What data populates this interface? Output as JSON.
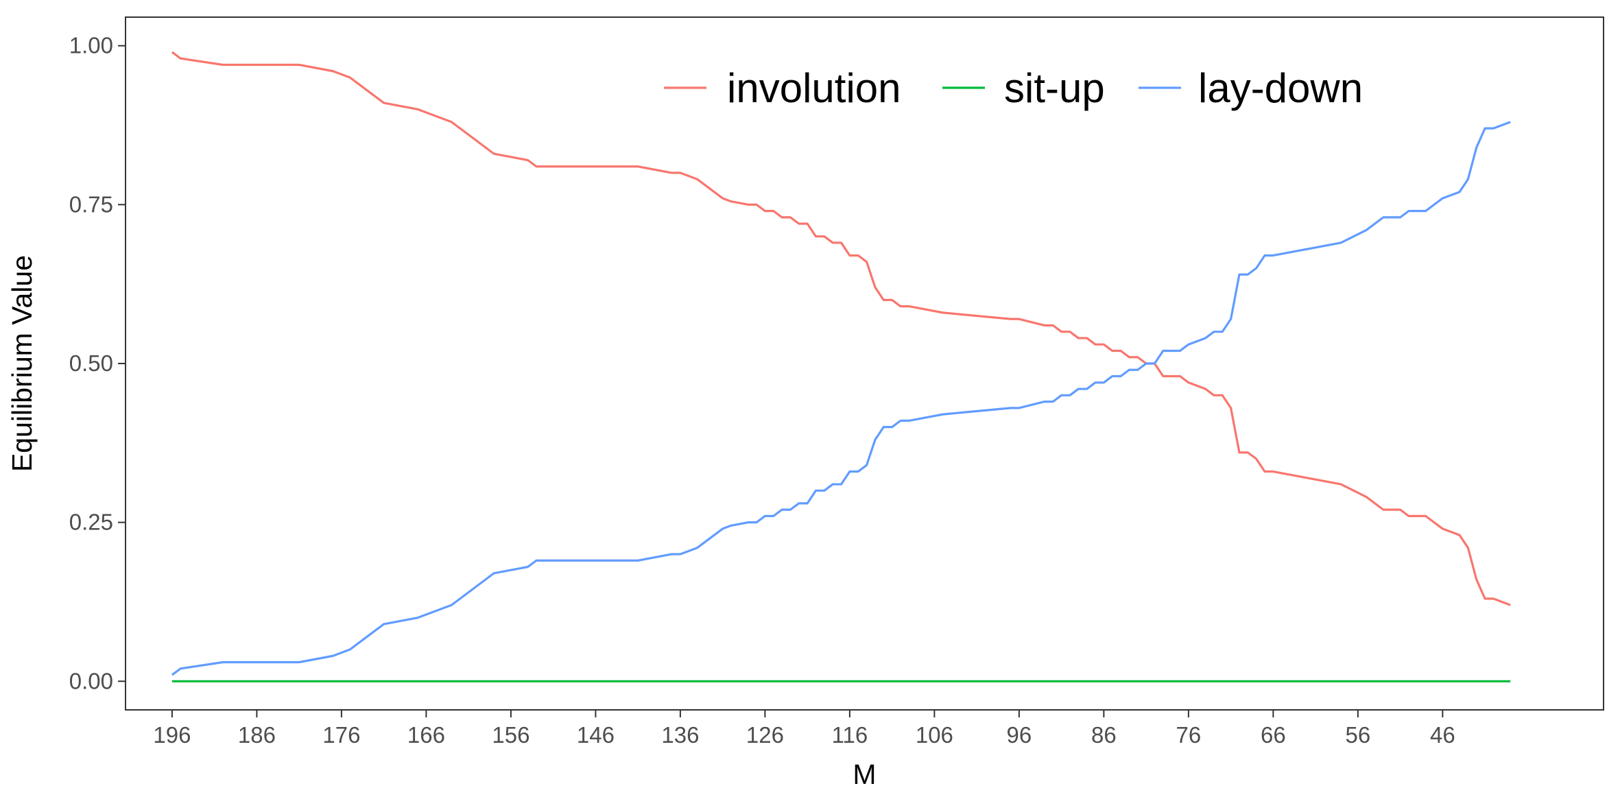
{
  "chart_data": {
    "type": "line",
    "xlabel": "M",
    "ylabel": "Equilibrium Value",
    "x_reversed": true,
    "xlim": [
      201.5,
      27
    ],
    "ylim": [
      -0.045,
      1.045
    ],
    "xticks": [
      196,
      186,
      176,
      166,
      156,
      146,
      136,
      126,
      116,
      106,
      96,
      86,
      76,
      66,
      56,
      46
    ],
    "yticks": [
      0,
      0.25,
      0.5,
      0.75,
      1.0
    ],
    "ytick_labels": [
      "0.00",
      "0.25",
      "0.50",
      "0.75",
      "1.00"
    ],
    "grid": false,
    "legend_position": "top-right",
    "x": [
      196,
      195,
      190,
      181,
      177,
      175,
      174,
      171,
      167,
      163,
      158,
      154,
      153,
      141,
      137,
      136,
      134,
      133,
      132,
      131,
      130,
      128,
      127,
      126,
      125,
      124,
      123,
      122,
      121,
      120,
      119,
      118,
      117,
      116,
      115,
      114,
      113,
      112,
      111,
      110,
      109,
      105,
      97,
      96,
      93,
      92,
      91,
      90,
      89,
      88,
      87,
      86,
      85,
      84,
      83,
      82,
      81,
      80,
      79,
      78,
      77,
      76,
      74,
      73,
      72,
      71,
      70,
      69,
      68,
      67,
      66,
      58,
      55,
      53,
      51,
      50,
      48,
      46,
      44,
      43,
      42,
      41,
      40,
      38
    ],
    "series": [
      {
        "name": "involution",
        "color": "#F8766D",
        "values": [
          0.99,
          0.98,
          0.97,
          0.97,
          0.96,
          0.95,
          0.94,
          0.91,
          0.9,
          0.88,
          0.83,
          0.82,
          0.81,
          0.81,
          0.8,
          0.8,
          0.79,
          0.78,
          0.77,
          0.76,
          0.755,
          0.75,
          0.75,
          0.74,
          0.74,
          0.73,
          0.73,
          0.72,
          0.72,
          0.7,
          0.7,
          0.69,
          0.69,
          0.67,
          0.67,
          0.66,
          0.62,
          0.6,
          0.6,
          0.59,
          0.59,
          0.58,
          0.57,
          0.57,
          0.56,
          0.56,
          0.55,
          0.55,
          0.54,
          0.54,
          0.53,
          0.53,
          0.52,
          0.52,
          0.51,
          0.51,
          0.5,
          0.5,
          0.48,
          0.48,
          0.48,
          0.47,
          0.46,
          0.45,
          0.45,
          0.43,
          0.36,
          0.36,
          0.35,
          0.33,
          0.33,
          0.31,
          0.29,
          0.27,
          0.27,
          0.26,
          0.26,
          0.24,
          0.23,
          0.21,
          0.16,
          0.13,
          0.13,
          0.12
        ]
      },
      {
        "name": "sit-up",
        "color": "#00BA38",
        "values": [
          0,
          0,
          0,
          0,
          0,
          0,
          0,
          0,
          0,
          0,
          0,
          0,
          0,
          0,
          0,
          0,
          0,
          0,
          0,
          0,
          0,
          0,
          0,
          0,
          0,
          0,
          0,
          0,
          0,
          0,
          0,
          0,
          0,
          0,
          0,
          0,
          0,
          0,
          0,
          0,
          0,
          0,
          0,
          0,
          0,
          0,
          0,
          0,
          0,
          0,
          0,
          0,
          0,
          0,
          0,
          0,
          0,
          0,
          0,
          0,
          0,
          0,
          0,
          0,
          0,
          0,
          0,
          0,
          0,
          0,
          0,
          0,
          0,
          0,
          0,
          0,
          0,
          0,
          0,
          0,
          0,
          0,
          0,
          0
        ]
      },
      {
        "name": "lay-down",
        "color": "#619CFF",
        "values": [
          0.01,
          0.02,
          0.03,
          0.03,
          0.04,
          0.05,
          0.06,
          0.09,
          0.1,
          0.12,
          0.17,
          0.18,
          0.19,
          0.19,
          0.2,
          0.2,
          0.21,
          0.22,
          0.23,
          0.24,
          0.245,
          0.25,
          0.25,
          0.26,
          0.26,
          0.27,
          0.27,
          0.28,
          0.28,
          0.3,
          0.3,
          0.31,
          0.31,
          0.33,
          0.33,
          0.34,
          0.38,
          0.4,
          0.4,
          0.41,
          0.41,
          0.42,
          0.43,
          0.43,
          0.44,
          0.44,
          0.45,
          0.45,
          0.46,
          0.46,
          0.47,
          0.47,
          0.48,
          0.48,
          0.49,
          0.49,
          0.5,
          0.5,
          0.52,
          0.52,
          0.52,
          0.53,
          0.54,
          0.55,
          0.55,
          0.57,
          0.64,
          0.64,
          0.65,
          0.67,
          0.67,
          0.69,
          0.71,
          0.73,
          0.73,
          0.74,
          0.74,
          0.76,
          0.77,
          0.79,
          0.84,
          0.87,
          0.87,
          0.88
        ]
      }
    ]
  }
}
